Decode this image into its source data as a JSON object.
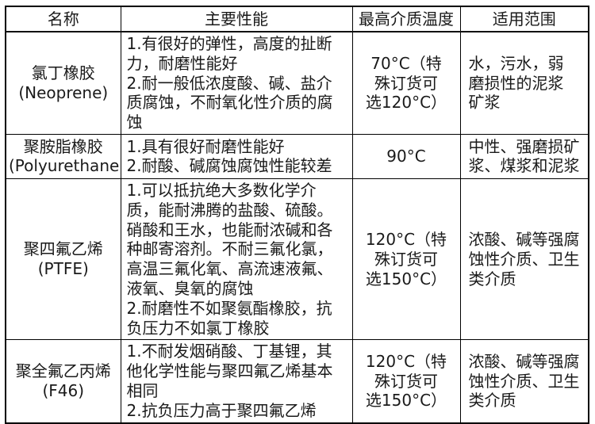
{
  "table": {
    "headers": [
      {
        "label": "名称"
      },
      {
        "label": "主要性能"
      },
      {
        "label": "最高介质温度"
      },
      {
        "label": "适用范围"
      }
    ],
    "rows": [
      {
        "name": "氯丁橡胶\n(Neoprene)",
        "performance": "1.有很好的弹性，高度的扯断力，耐磨性能好\n2.耐一般低浓度酸、碱、盐介质腐蚀，不耐氧化性介质的腐蚀",
        "max_temp": "70°C（特\n殊订货可\n选120°C）",
        "range": "水，污水，弱\n磨损性的泥浆\n矿浆"
      },
      {
        "name": "聚胺脂橡胶\n(Polyurethane)",
        "performance": "1.具有很好耐磨性能好\n2.耐酸、碱腐蚀腐蚀性能较差",
        "max_temp": "90°C",
        "range": "中性、强磨损矿\n浆、煤浆和泥浆"
      },
      {
        "name": "聚四氟乙烯\n(PTFE)",
        "performance": "1.可以抵抗绝大多数化学介质，能耐沸腾的盐酸、硫酸。硝酸和王水，也能耐浓碱和各种邮寄溶剂。不耐三氟化氯，高温三氟化氧、高流速液氟、液氧、臭氧的腐蚀\n2.耐磨性不如聚氨酯橡胶，抗负压力不如氯丁橡胶",
        "max_temp": "120°C（特\n殊订货可\n选150°C）",
        "range": "浓酸、碱等强腐\n蚀性介质、卫生\n类介质"
      },
      {
        "name": "聚全氟乙丙烯\n(F46)",
        "performance": "1.不耐发烟硝酸、丁基锂，其他化学性能与聚四氟乙烯基本相同\n2.抗负压力高于聚四氟乙烯",
        "max_temp": "120°C（特\n殊订货可\n选150°C）",
        "range": "浓酸、碱等强腐\n蚀性介质、卫生\n类介质"
      }
    ]
  },
  "colors": {
    "border": "#000000",
    "text": "#1a1a1a",
    "background": "#ffffff"
  }
}
